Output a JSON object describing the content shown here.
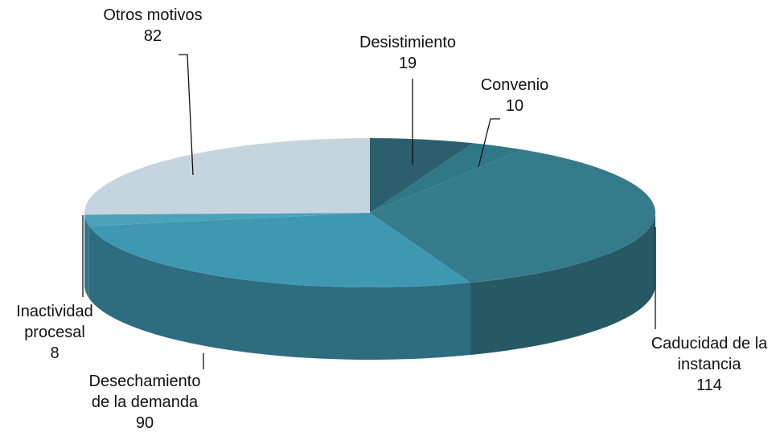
{
  "chart_data": {
    "type": "pie",
    "categories": [
      "Desistimiento",
      "Convenio",
      "Caducidad de la instancia",
      "Desechamiento de la demanda",
      "Inactividad procesal",
      "Otros motivos"
    ],
    "values": [
      19,
      10,
      114,
      90,
      8,
      82
    ],
    "colors": [
      "#2b5f6e",
      "#2f7888",
      "#367b8b",
      "#3f98b1",
      "#4aa3bb",
      "#c6d5dd"
    ]
  }
}
